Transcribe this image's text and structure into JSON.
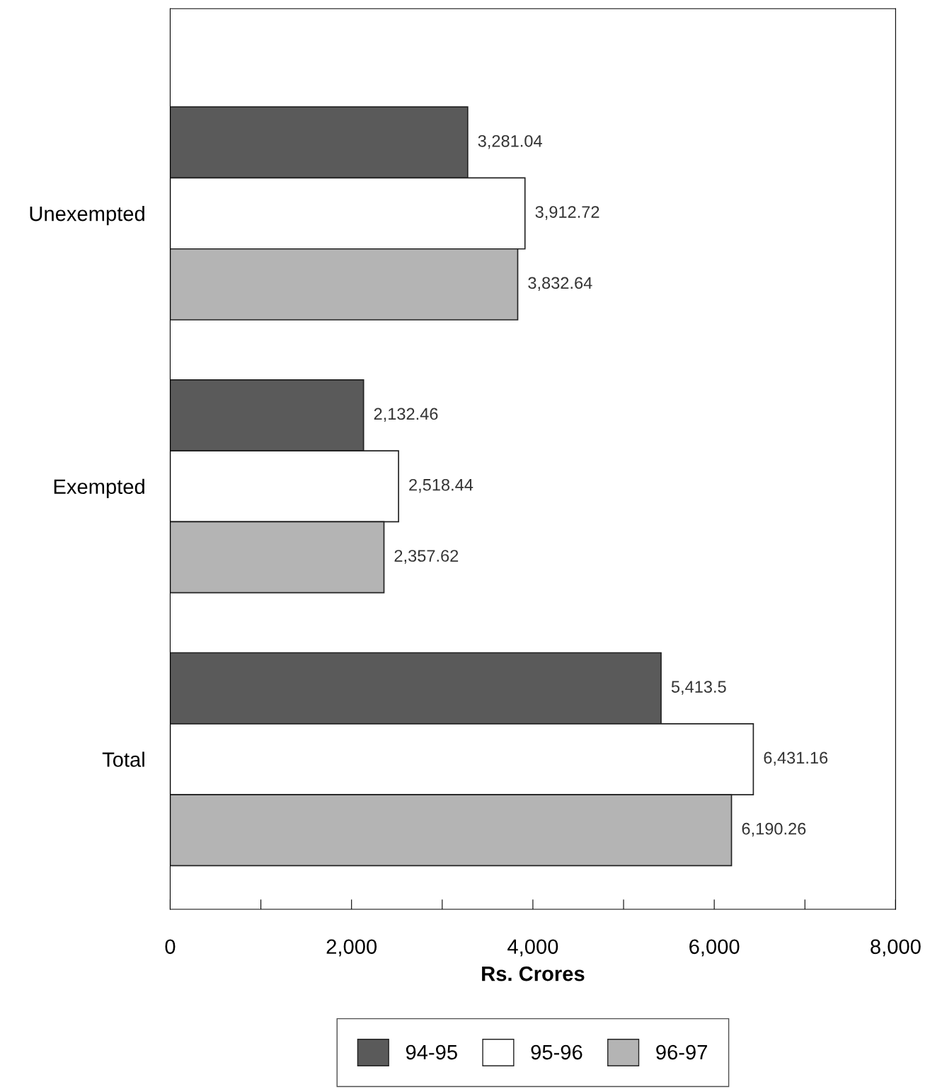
{
  "chart_data": {
    "type": "bar",
    "orientation": "horizontal",
    "xlabel": "Rs. Crores",
    "categories": [
      "Unexempted",
      "Exempted",
      "Total"
    ],
    "series": [
      {
        "name": "94-95",
        "color": "#5a5a5a",
        "values": [
          3281.04,
          2132.46,
          5413.5
        ],
        "value_labels": [
          "3,281.04",
          "2,132.46",
          "5,413.5"
        ]
      },
      {
        "name": "95-96",
        "color": "#ffffff",
        "values": [
          3912.72,
          2518.44,
          6431.16
        ],
        "value_labels": [
          "3,912.72",
          "2,518.44",
          "6,431.16"
        ]
      },
      {
        "name": "96-97",
        "color": "#b4b4b4",
        "values": [
          3832.64,
          2357.62,
          6190.26
        ],
        "value_labels": [
          "3,832.64",
          "2,357.62",
          "6,190.26"
        ]
      }
    ],
    "xlim": [
      0,
      8000
    ],
    "xticks": [
      0,
      {
        "value": 1000,
        "label": null
      },
      {
        "value": 2000,
        "label": "2,000"
      },
      {
        "value": 3000,
        "label": null
      },
      {
        "value": 4000,
        "label": "4,000"
      },
      {
        "value": 5000,
        "label": null
      },
      {
        "value": 6000,
        "label": "6,000"
      },
      {
        "value": 7000,
        "label": null
      },
      {
        "value": 8000,
        "label": "8,000"
      }
    ],
    "grid": false,
    "legend": "bottom"
  }
}
